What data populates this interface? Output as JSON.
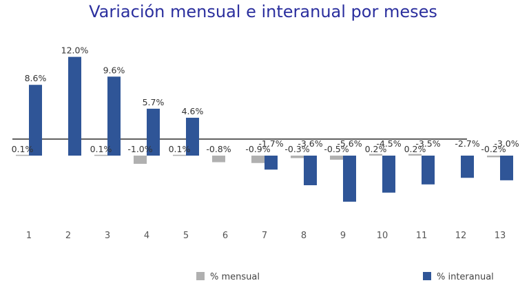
{
  "chart_data": {
    "type": "bar",
    "title": "Variación mensual e interanual por meses",
    "xlabel": "",
    "ylabel": "",
    "categories": [
      "1",
      "2",
      "3",
      "4",
      "5",
      "6",
      "7",
      "8",
      "9",
      "10",
      "11",
      "12",
      "13"
    ],
    "series": [
      {
        "name": "% mensual",
        "color": "#b0b0b0",
        "values": [
          0.1,
          null,
          0.1,
          -1.0,
          0.1,
          -0.8,
          -0.9,
          -0.3,
          -0.5,
          0.2,
          0.2,
          null,
          -0.2
        ],
        "labels": [
          "0.1%",
          "",
          "0.1%",
          "-1.0%",
          "0.1%",
          "-0.8%",
          "-0.9%",
          "-0.3%",
          "-0.5%",
          "0.2%",
          "0.2%",
          "",
          "-0.2%"
        ]
      },
      {
        "name": "% interanual",
        "color": "#2f5597",
        "values": [
          8.6,
          12.0,
          9.6,
          5.7,
          4.6,
          null,
          -1.7,
          -3.6,
          -5.6,
          -4.5,
          -3.5,
          -2.7,
          -3.0
        ],
        "labels": [
          "8.6%",
          "12.0%",
          "9.6%",
          "5.7%",
          "4.6%",
          "",
          "-1.7%",
          "-3.6%",
          "-5.6%",
          "-4.5%",
          "-3.5%",
          "-2.7%",
          "-3.0%"
        ]
      }
    ],
    "grid": false,
    "legend_position": "bottom"
  }
}
